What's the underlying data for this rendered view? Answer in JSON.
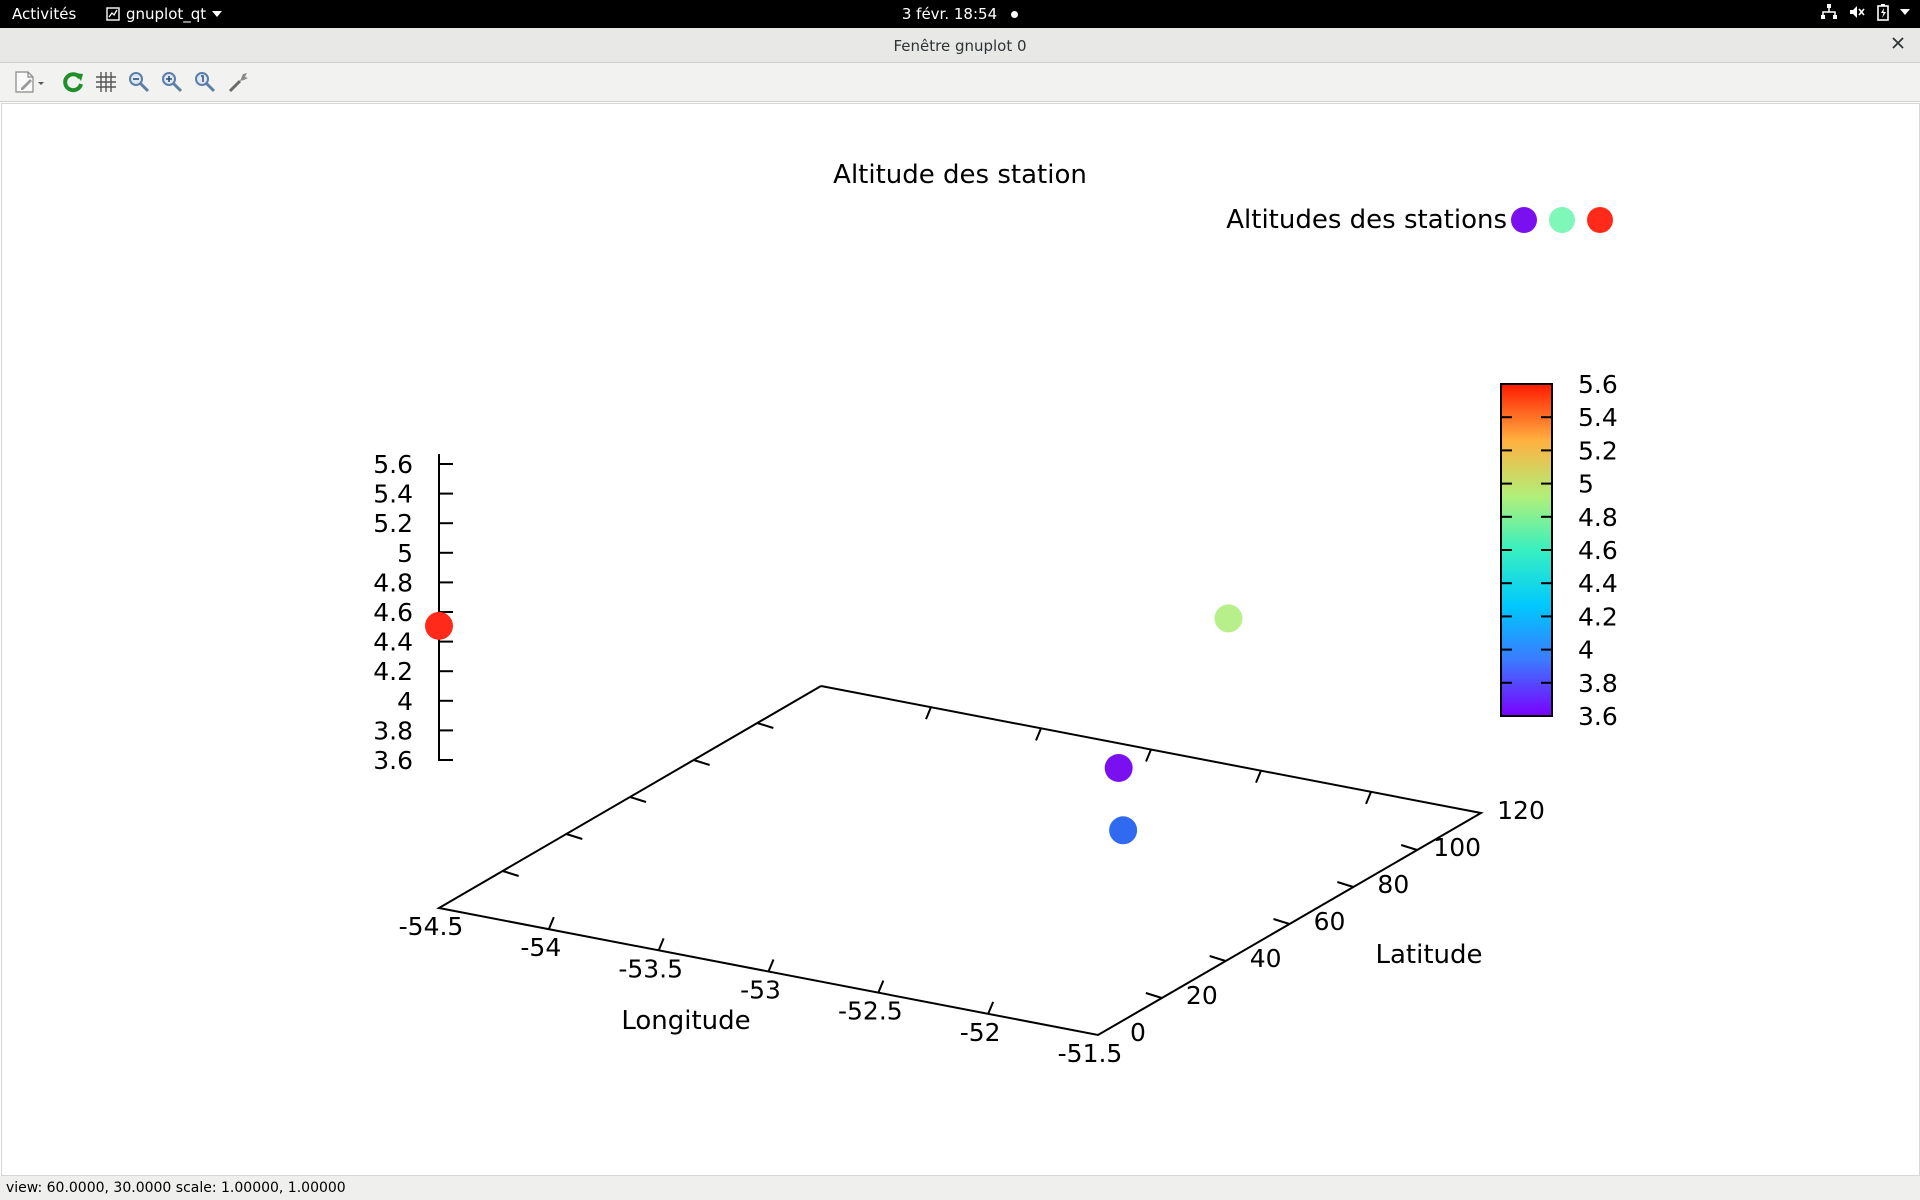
{
  "topbar": {
    "activities": "Activités",
    "app_menu": "gnuplot_qt",
    "clock": "3 févr.  18:54"
  },
  "window": {
    "title": "Fenêtre gnuplot 0"
  },
  "toolbar": {
    "items": [
      {
        "name": "export-icon"
      },
      {
        "name": "replot-icon"
      },
      {
        "name": "grid-icon"
      },
      {
        "name": "zoom-previous-icon"
      },
      {
        "name": "zoom-next-icon"
      },
      {
        "name": "autoscale-icon"
      },
      {
        "name": "settings-icon"
      }
    ]
  },
  "statusbar": {
    "text": "view: 60.0000, 30.0000  scale: 1.00000, 1.00000"
  },
  "chart_data": {
    "type": "scatter",
    "dimensions": 3,
    "title": "Altitude des station",
    "xlabel": "Longitude",
    "ylabel": "Latitude",
    "zlabel": "",
    "xlim": [
      -54.5,
      -51.5
    ],
    "ylim": [
      0,
      120
    ],
    "zlim": [
      3.6,
      5.6
    ],
    "xticks": [
      "-54.5",
      "-54",
      "-53.5",
      "-53",
      "-52.5",
      "-52",
      "-51.5"
    ],
    "yticks": [
      "0",
      "20",
      "40",
      "60",
      "80",
      "100",
      "120"
    ],
    "zticks": [
      "5.6",
      "5.4",
      "5.2",
      "5",
      "4.8",
      "4.6",
      "4.4",
      "4.2",
      "4",
      "3.8",
      "3.6"
    ],
    "series": [
      {
        "name": "Altitudes des stations",
        "points": [
          {
            "x": -54.5,
            "y": 0,
            "z": 5.5,
            "color": "#ff2a1a"
          },
          {
            "x": -53.0,
            "y": 110,
            "z": 3.6,
            "color": "#7a10f0"
          },
          {
            "x": -52.5,
            "y": 110,
            "z": 4.75,
            "color": "#b7f08a"
          },
          {
            "x": -52.4,
            "y": 70,
            "z": 3.85,
            "color": "#2f6af0"
          }
        ]
      }
    ],
    "legend": {
      "position": "top-right",
      "label": "Altitudes des stations",
      "colors": [
        "#7a10f0",
        "#7ff7b8",
        "#ff2a1a"
      ]
    },
    "colorbar": {
      "position": "right",
      "range": [
        3.6,
        5.6
      ],
      "ticks": [
        "5.6",
        "5.4",
        "5.2",
        "5",
        "4.8",
        "4.6",
        "4.4",
        "4.2",
        "4",
        "3.8",
        "3.6"
      ],
      "colors": [
        "#7a00ff",
        "#3a7bff",
        "#00c8ff",
        "#37f0c0",
        "#b0f07a",
        "#ffb040",
        "#ff1a00"
      ]
    },
    "grid": false
  }
}
